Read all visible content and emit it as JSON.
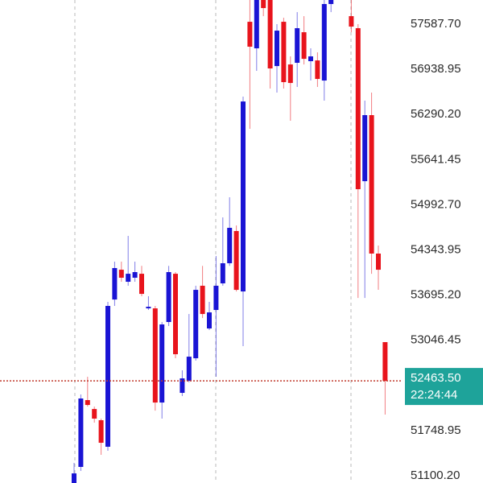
{
  "chart_data": {
    "type": "candlestick",
    "categories": [
      null,
      null,
      null,
      null,
      null,
      null,
      null,
      null,
      null,
      null,
      null,
      null,
      null,
      null,
      null,
      null,
      null,
      null,
      null,
      null,
      null,
      null,
      null,
      null,
      null,
      null,
      null,
      null,
      null,
      null,
      null,
      null,
      null,
      null,
      null,
      null,
      null,
      null,
      null,
      null,
      null,
      null,
      null,
      null,
      null,
      null,
      null
    ],
    "open": [
      50996,
      51227,
      52187,
      52059,
      51898,
      51517,
      53632,
      54060,
      53887,
      53945,
      54002,
      53505,
      53505,
      52152,
      53309,
      54002,
      52291,
      52465,
      52788,
      53830,
      53216,
      53482,
      53864,
      54153,
      54616,
      53748,
      57622,
      57241,
      57935,
      57935,
      56986,
      57622,
      57009,
      57033,
      57472,
      57056,
      57067,
      56778,
      57877,
      null,
      null,
      57703,
      57530,
      55332,
      56281,
      54292,
      53020
    ],
    "high": [
      51285,
      52268,
      52522,
      52094,
      51921,
      53598,
      54176,
      54176,
      54546,
      54176,
      54115,
      53679,
      53540,
      53309,
      54115,
      54026,
      52615,
      53424,
      53830,
      54115,
      53598,
      54257,
      54812,
      55101,
      54696,
      56547,
      57935,
      57935,
      57935,
      57935,
      57588,
      57680,
      57125,
      57761,
      57703,
      57241,
      57183,
      57935,
      57935,
      null,
      null,
      57935,
      57588,
      56489,
      56605,
      54407,
      53020
    ],
    "low": [
      50996,
      51169,
      52094,
      51863,
      51401,
      51459,
      53540,
      53887,
      53830,
      53887,
      53679,
      53482,
      52036,
      51921,
      53251,
      52788,
      52245,
      52442,
      52754,
      53366,
      53193,
      52522,
      53830,
      54115,
      53748,
      52962,
      56084,
      56917,
      57703,
      56663,
      56605,
      56663,
      56200,
      56686,
      57009,
      56778,
      56686,
      56489,
      57761,
      null,
      null,
      57472,
      53655,
      53655,
      54002,
      53771,
      51979
    ],
    "close": [
      51134,
      52210,
      52117,
      51921,
      51574,
      53540,
      54084,
      53945,
      54002,
      54026,
      53713,
      53528,
      52152,
      53274,
      54026,
      52846,
      52499,
      52811,
      53771,
      53424,
      53447,
      53830,
      54153,
      54662,
      53771,
      56477,
      57264,
      57935,
      57819,
      56952,
      57495,
      56755,
      56743,
      57530,
      57090,
      57125,
      56801,
      57877,
      57935,
      null,
      null,
      57553,
      55217,
      56281,
      54292,
      54060,
      52463.5
    ],
    "up_color": "#1a14d4",
    "down_color": "#e8141c",
    "ylim": [
      50996,
      57935
    ],
    "yticks": [
      {
        "value": 57587.7,
        "label": "57587.70"
      },
      56938.95,
      {
        "value": 56290.2,
        "label": "56290.20"
      },
      55641.45,
      {
        "value": 54992.7,
        "label": "54992.70"
      },
      54343.95,
      {
        "value": 53695.2,
        "label": "53695.20"
      },
      53046.45,
      51748.95,
      {
        "value": 51100.2,
        "label": "51100.20"
      }
    ],
    "current_price": {
      "value": 52463.5,
      "label": "52463.50",
      "time": "22:24:44",
      "color": "#1ea39a",
      "line_color": "#c0392b"
    }
  }
}
